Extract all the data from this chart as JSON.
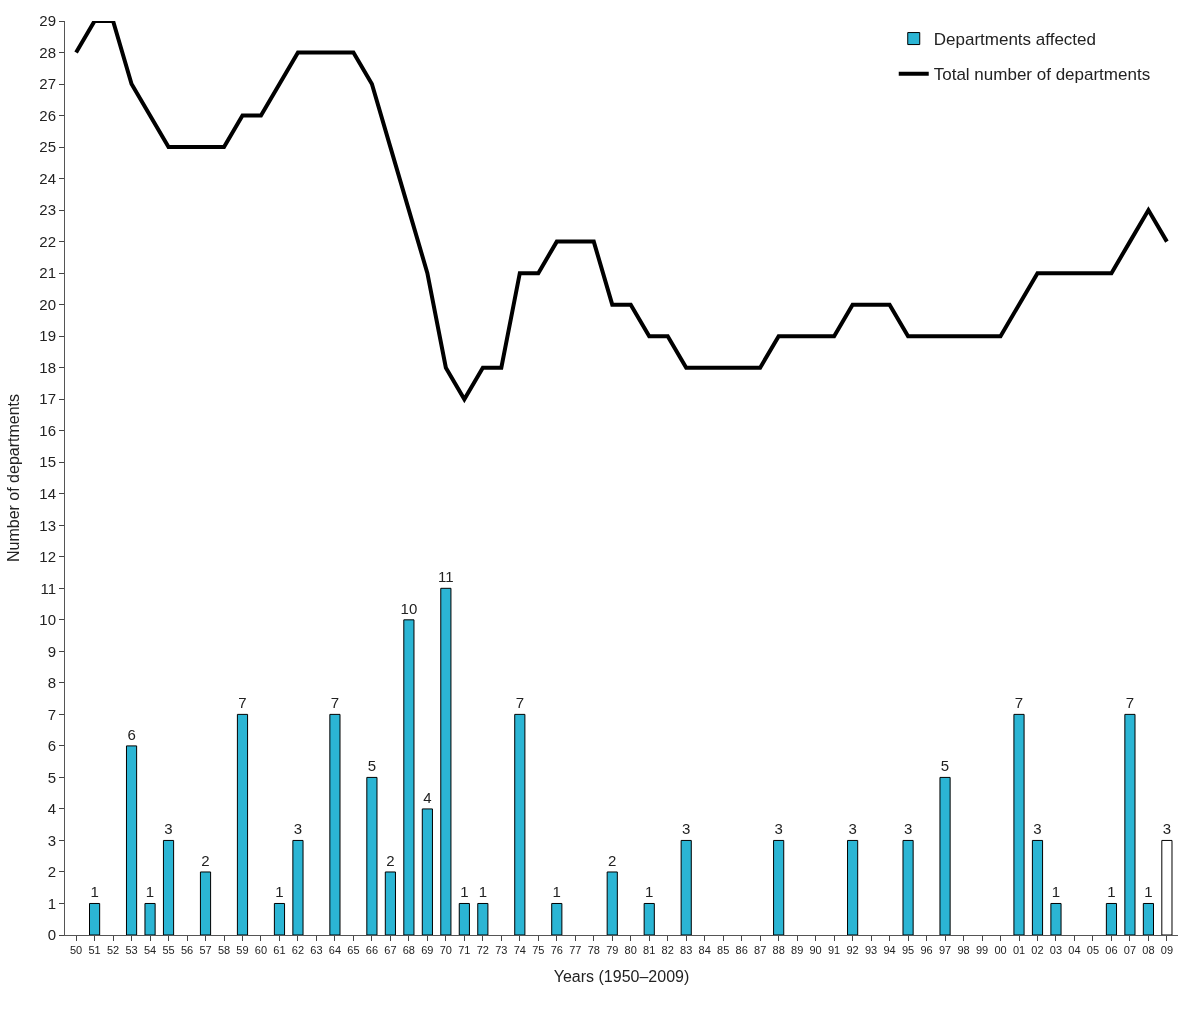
{
  "chart_data": {
    "type": "bar",
    "xlabel": "Years (1950–2009)",
    "ylabel": "Number of departments",
    "categories": [
      "50",
      "51",
      "52",
      "53",
      "54",
      "55",
      "56",
      "57",
      "58",
      "59",
      "60",
      "61",
      "62",
      "63",
      "64",
      "65",
      "66",
      "67",
      "68",
      "69",
      "70",
      "71",
      "72",
      "73",
      "74",
      "75",
      "76",
      "77",
      "78",
      "79",
      "80",
      "81",
      "82",
      "83",
      "84",
      "85",
      "86",
      "87",
      "88",
      "89",
      "90",
      "91",
      "92",
      "93",
      "94",
      "95",
      "96",
      "97",
      "98",
      "99",
      "00",
      "01",
      "02",
      "03",
      "04",
      "05",
      "06",
      "07",
      "08",
      "09"
    ],
    "series": [
      {
        "name": "Departments affected",
        "color": "#2bb5d4",
        "data_labels": true,
        "values": [
          null,
          1,
          null,
          6,
          1,
          3,
          null,
          2,
          null,
          7,
          null,
          1,
          3,
          null,
          7,
          null,
          5,
          2,
          10,
          4,
          11,
          1,
          1,
          null,
          7,
          null,
          1,
          null,
          null,
          2,
          null,
          1,
          null,
          3,
          null,
          null,
          null,
          null,
          3,
          null,
          null,
          null,
          3,
          null,
          null,
          3,
          null,
          5,
          null,
          null,
          null,
          7,
          3,
          1,
          null,
          null,
          1,
          7,
          1,
          3
        ],
        "colors": [
          "#2bb5d4",
          "#2bb5d4",
          "#2bb5d4",
          "#2bb5d4",
          "#2bb5d4",
          "#2bb5d4",
          "#2bb5d4",
          "#2bb5d4",
          "#2bb5d4",
          "#2bb5d4",
          "#2bb5d4",
          "#2bb5d4",
          "#2bb5d4",
          "#2bb5d4",
          "#2bb5d4",
          "#2bb5d4",
          "#2bb5d4",
          "#2bb5d4",
          "#2bb5d4",
          "#2bb5d4",
          "#2bb5d4",
          "#2bb5d4",
          "#2bb5d4",
          "#2bb5d4",
          "#2bb5d4",
          "#2bb5d4",
          "#2bb5d4",
          "#2bb5d4",
          "#2bb5d4",
          "#2bb5d4",
          "#2bb5d4",
          "#2bb5d4",
          "#2bb5d4",
          "#2bb5d4",
          "#2bb5d4",
          "#2bb5d4",
          "#2bb5d4",
          "#2bb5d4",
          "#2bb5d4",
          "#2bb5d4",
          "#2bb5d4",
          "#2bb5d4",
          "#2bb5d4",
          "#2bb5d4",
          "#2bb5d4",
          "#2bb5d4",
          "#2bb5d4",
          "#2bb5d4",
          "#2bb5d4",
          "#2bb5d4",
          "#2bb5d4",
          "#2bb5d4",
          "#2bb5d4",
          "#2bb5d4",
          "#2bb5d4",
          "#2bb5d4",
          "#2bb5d4",
          "#2bb5d4",
          "#2bb5d4",
          "#ffffff"
        ]
      },
      {
        "name": "Total number of departments",
        "type": "line",
        "color": "#000000",
        "values": [
          28,
          29,
          29,
          27,
          26,
          25,
          25,
          25,
          25,
          26,
          26,
          27,
          28,
          28,
          28,
          28,
          27,
          25,
          23,
          21,
          18,
          17,
          18,
          18,
          21,
          21,
          22,
          22,
          22,
          20,
          20,
          19,
          19,
          18,
          18,
          18,
          18,
          18,
          19,
          19,
          19,
          19,
          20,
          20,
          20,
          19,
          19,
          19,
          19,
          19,
          19,
          20,
          21,
          21,
          21,
          21,
          21,
          22,
          23,
          22
        ]
      }
    ],
    "ylim": [
      0,
      29
    ],
    "yticks": [
      0,
      1,
      2,
      3,
      4,
      5,
      6,
      7,
      8,
      9,
      10,
      11,
      12,
      13,
      14,
      15,
      16,
      17,
      18,
      19,
      20,
      21,
      22,
      23,
      24,
      25,
      26,
      27,
      28,
      29
    ],
    "legend": "top right",
    "marker": "none",
    "line_style": "solid"
  }
}
